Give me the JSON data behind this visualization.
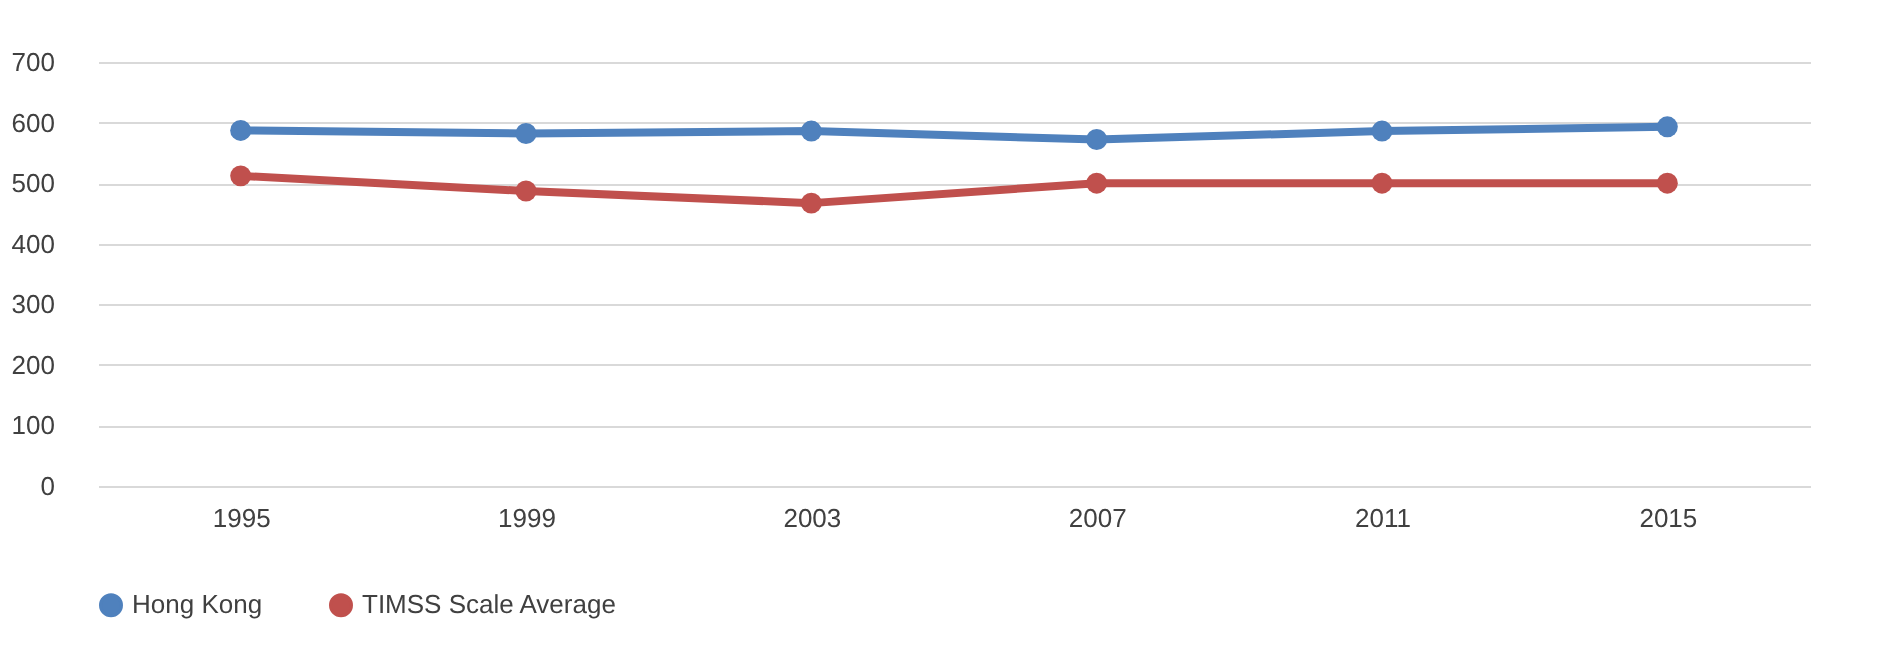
{
  "chart_data": {
    "type": "line",
    "categories": [
      "1995",
      "1999",
      "2003",
      "2007",
      "2011",
      "2015"
    ],
    "series": [
      {
        "name": "Hong Kong",
        "color": "#4f81bd",
        "values": [
          587,
          582,
          586,
          572,
          586,
          593
        ]
      },
      {
        "name": "TIMSS Scale Average",
        "color": "#c0504d",
        "values": [
          512,
          487,
          467,
          500,
          500,
          500
        ]
      }
    ],
    "ylim": [
      0,
      700
    ],
    "yticks": [
      0,
      100,
      200,
      300,
      400,
      500,
      600,
      700
    ],
    "grid": "y",
    "legend": "bottom",
    "marker": "circle",
    "line_style": "solid"
  }
}
